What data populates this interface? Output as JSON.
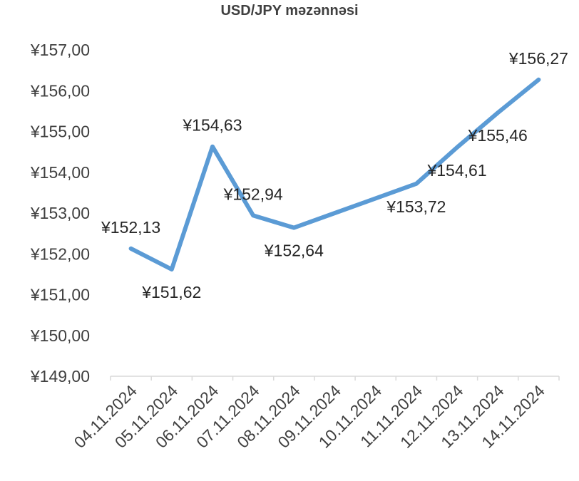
{
  "chart_data": {
    "type": "line",
    "title": "USD/JPY məzənnəsi",
    "categories": [
      "04.11.2024",
      "05.11.2024",
      "06.11.2024",
      "07.11.2024",
      "08.11.2024",
      "09.11.2024",
      "10.11.2024",
      "11.11.2024",
      "12.11.2024",
      "13.11.2024",
      "14.11.2024"
    ],
    "series": [
      {
        "values": [
          152.13,
          151.62,
          154.63,
          152.94,
          152.64,
          153.0,
          153.36,
          153.72,
          154.61,
          155.46,
          156.27
        ],
        "data_labels": [
          "¥152,13",
          "¥151,62",
          "¥154,63",
          "¥152,94",
          "¥152,64",
          null,
          null,
          "¥153,72",
          "¥154,61",
          "¥155,46",
          "¥156,27"
        ],
        "color": "#5b9bd5"
      }
    ],
    "y_ticks": [
      "¥149,00",
      "¥150,00",
      "¥151,00",
      "¥152,00",
      "¥153,00",
      "¥154,00",
      "¥155,00",
      "¥156,00",
      "¥157,00"
    ],
    "ylim": [
      149,
      157
    ],
    "grid": false,
    "legend": "none"
  }
}
